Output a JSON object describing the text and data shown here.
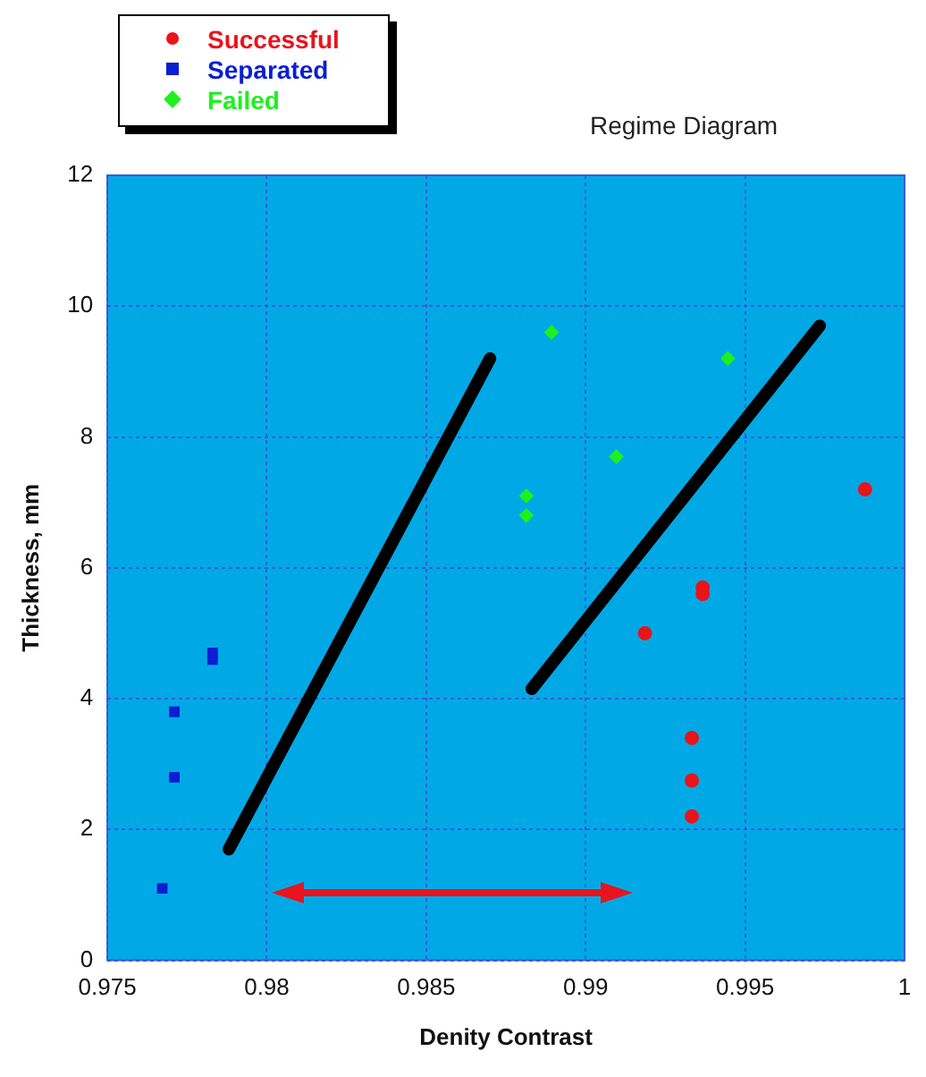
{
  "chart_data": {
    "type": "scatter",
    "title": "Regime Diagram",
    "xlabel": "Denity Contrast",
    "ylabel": "Thickness, mm",
    "xlim": [
      0.975,
      1
    ],
    "xticks": [
      0.975,
      0.98,
      0.985,
      0.99,
      0.995,
      1
    ],
    "ylim": [
      0,
      12
    ],
    "yticks": [
      0,
      2,
      4,
      6,
      8,
      10,
      12
    ],
    "grid": true,
    "legend": "top left",
    "series": [
      {
        "name": "Successful",
        "color": "#e8141c",
        "marker": "circle",
        "x": [
          0.99876,
          0.99367,
          0.99367,
          0.99186,
          0.99333,
          0.99333,
          0.99333
        ],
        "values": [
          7.2,
          5.7,
          5.6,
          5.0,
          3.4,
          2.75,
          2.2
        ]
      },
      {
        "name": "Separated",
        "color": "#0a1ed2",
        "marker": "square",
        "x": [
          0.97672,
          0.9771,
          0.9771,
          0.9783,
          0.9783
        ],
        "values": [
          1.1,
          2.8,
          3.8,
          4.6,
          4.7
        ]
      },
      {
        "name": "Failed",
        "color": "#1ef01e",
        "marker": "diamond",
        "x": [
          0.98893,
          0.99446,
          0.99096,
          0.98814,
          0.98814
        ],
        "values": [
          9.6,
          9.2,
          7.7,
          7.1,
          6.8
        ]
      },
      {
        "type": "line",
        "color": "#000000",
        "marker": "none",
        "x": [
          0.97881,
          0.987
        ],
        "values": [
          1.7,
          9.2
        ]
      },
      {
        "type": "line",
        "color": "#000000",
        "marker": "none",
        "x": [
          0.98831,
          0.99734
        ],
        "values": [
          4.15,
          9.7
        ]
      }
    ]
  }
}
